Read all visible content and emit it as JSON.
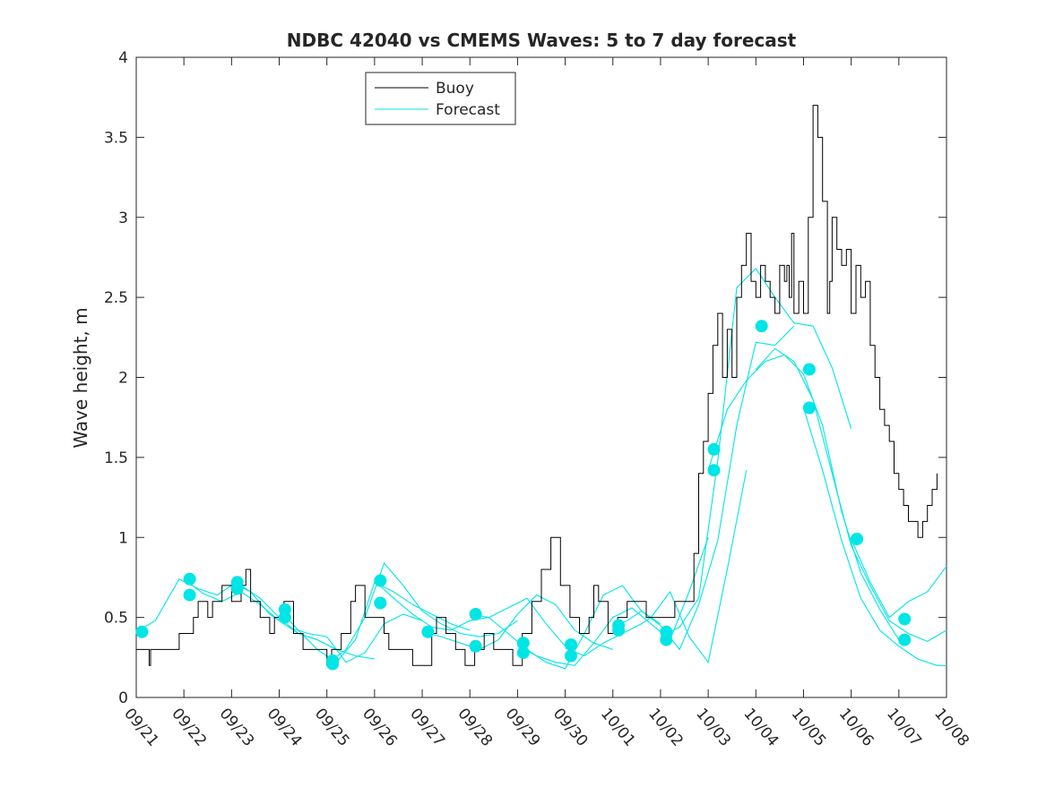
{
  "chart_data": {
    "type": "line",
    "title": "NDBC 42040 vs CMEMS Waves: 5 to 7 day forecast",
    "xlabel": "",
    "ylabel": "Wave height, m",
    "xlim": [
      0,
      17
    ],
    "ylim": [
      0,
      4
    ],
    "x_tick_values": [
      0,
      1,
      2,
      3,
      4,
      5,
      6,
      7,
      8,
      9,
      10,
      11,
      12,
      13,
      14,
      15,
      16,
      17
    ],
    "x_tick_labels": [
      "09/21",
      "09/22",
      "09/23",
      "09/24",
      "09/25",
      "09/26",
      "09/27",
      "09/28",
      "09/29",
      "09/30",
      "10/01",
      "10/02",
      "10/03",
      "10/04",
      "10/05",
      "10/06",
      "10/07",
      "10/08"
    ],
    "y_tick_values": [
      0,
      0.5,
      1,
      1.5,
      2,
      2.5,
      3,
      3.5,
      4
    ],
    "y_tick_labels": [
      "0",
      "0.5",
      "1",
      "1.5",
      "2",
      "2.5",
      "3",
      "3.5",
      "4"
    ],
    "legend": {
      "position": "top-center",
      "entries": [
        "Buoy",
        "Forecast"
      ]
    },
    "colors": {
      "buoy": "#000000",
      "forecast": "#00e5e5",
      "axis": "#262626"
    },
    "buoy": {
      "name": "Buoy",
      "x": [
        0,
        0.25,
        0.27,
        0.3,
        0.6,
        0.9,
        1.0,
        1.2,
        1.3,
        1.5,
        1.6,
        1.8,
        2.0,
        2.2,
        2.3,
        2.4,
        2.6,
        2.8,
        2.9,
        3.1,
        3.3,
        3.5,
        3.8,
        4.0,
        4.1,
        4.3,
        4.5,
        4.6,
        4.8,
        5.0,
        5.2,
        5.3,
        5.5,
        5.8,
        6.0,
        6.2,
        6.3,
        6.5,
        6.7,
        6.9,
        7.1,
        7.3,
        7.5,
        7.7,
        7.9,
        8.1,
        8.3,
        8.5,
        8.7,
        8.9,
        9.1,
        9.3,
        9.5,
        9.6,
        9.7,
        9.9,
        10.1,
        10.3,
        10.5,
        10.7,
        10.9,
        11.1,
        11.3,
        11.5,
        11.6,
        11.7,
        11.8,
        11.9,
        12.0,
        12.1,
        12.2,
        12.3,
        12.4,
        12.5,
        12.6,
        12.7,
        12.8,
        12.9,
        13.0,
        13.1,
        13.2,
        13.3,
        13.4,
        13.5,
        13.6,
        13.65,
        13.7,
        13.75,
        13.8,
        13.9,
        14.0,
        14.1,
        14.2,
        14.3,
        14.4,
        14.5,
        14.55,
        14.6,
        14.7,
        14.8,
        14.9,
        15.0,
        15.1,
        15.2,
        15.3,
        15.4,
        15.5,
        15.6,
        15.7,
        15.8,
        15.9,
        16.0,
        16.1,
        16.2,
        16.3,
        16.4,
        16.5,
        16.6,
        16.7,
        16.8
      ],
      "y": [
        0.3,
        0.3,
        0.2,
        0.3,
        0.3,
        0.4,
        0.4,
        0.5,
        0.6,
        0.5,
        0.6,
        0.7,
        0.6,
        0.7,
        0.8,
        0.6,
        0.5,
        0.4,
        0.5,
        0.6,
        0.4,
        0.3,
        0.3,
        0.2,
        0.3,
        0.4,
        0.6,
        0.7,
        0.5,
        0.5,
        0.4,
        0.3,
        0.3,
        0.2,
        0.2,
        0.4,
        0.5,
        0.4,
        0.3,
        0.2,
        0.3,
        0.4,
        0.3,
        0.3,
        0.2,
        0.4,
        0.6,
        0.8,
        1.0,
        0.7,
        0.5,
        0.4,
        0.5,
        0.7,
        0.6,
        0.4,
        0.5,
        0.6,
        0.6,
        0.5,
        0.5,
        0.5,
        0.6,
        0.6,
        0.6,
        0.9,
        1.4,
        1.6,
        1.9,
        2.2,
        2.4,
        2.0,
        2.3,
        2.0,
        2.5,
        2.7,
        2.9,
        2.6,
        2.5,
        2.7,
        2.6,
        2.5,
        2.4,
        2.7,
        2.6,
        2.7,
        2.5,
        2.9,
        2.4,
        2.6,
        2.4,
        3.0,
        3.7,
        3.5,
        3.1,
        2.4,
        2.6,
        3.0,
        2.8,
        2.7,
        2.8,
        2.4,
        2.7,
        2.5,
        2.6,
        2.2,
        2.0,
        1.8,
        1.7,
        1.6,
        1.4,
        1.3,
        1.2,
        1.1,
        1.1,
        1.0,
        1.1,
        1.2,
        1.3,
        1.4
      ]
    },
    "forecast_series": [
      {
        "name": "Forecast",
        "x": [
          0.0,
          0.4,
          0.9,
          1.3,
          1.7,
          2.1,
          2.6,
          3.0,
          3.4,
          3.8,
          4.2
        ],
        "y": [
          0.41,
          0.48,
          0.74,
          0.68,
          0.64,
          0.72,
          0.62,
          0.5,
          0.4,
          0.36,
          0.3
        ]
      },
      {
        "name": "Forecast",
        "x": [
          1.0,
          1.4,
          1.8,
          2.2,
          2.6,
          3.0,
          3.4,
          3.8,
          4.2,
          4.6,
          5.0
        ],
        "y": [
          0.74,
          0.65,
          0.6,
          0.66,
          0.58,
          0.48,
          0.4,
          0.36,
          0.3,
          0.26,
          0.24
        ]
      },
      {
        "name": "Forecast",
        "x": [
          2.0,
          2.4,
          2.8,
          3.2,
          3.6,
          4.0,
          4.4,
          4.8,
          5.2,
          5.6,
          6.0
        ],
        "y": [
          0.72,
          0.66,
          0.52,
          0.44,
          0.4,
          0.38,
          0.22,
          0.28,
          0.46,
          0.52,
          0.48
        ]
      },
      {
        "name": "Forecast",
        "x": [
          3.0,
          3.4,
          3.8,
          4.2,
          4.6,
          5.0,
          5.4,
          5.8,
          6.2,
          6.6,
          7.0
        ],
        "y": [
          0.55,
          0.42,
          0.3,
          0.22,
          0.36,
          0.72,
          0.66,
          0.58,
          0.52,
          0.46,
          0.42
        ]
      },
      {
        "name": "Forecast",
        "x": [
          4.0,
          4.4,
          4.8,
          5.2,
          5.6,
          6.0,
          6.4,
          6.8,
          7.2,
          7.6,
          8.0
        ],
        "y": [
          0.21,
          0.3,
          0.5,
          0.84,
          0.7,
          0.54,
          0.46,
          0.4,
          0.38,
          0.4,
          0.48
        ]
      },
      {
        "name": "Forecast",
        "x": [
          5.0,
          5.4,
          5.8,
          6.2,
          6.6,
          7.0,
          7.4,
          7.8,
          8.2,
          8.6,
          9.0
        ],
        "y": [
          0.73,
          0.62,
          0.52,
          0.44,
          0.42,
          0.48,
          0.5,
          0.56,
          0.62,
          0.46,
          0.32
        ]
      },
      {
        "name": "Forecast",
        "x": [
          6.0,
          6.4,
          6.8,
          7.2,
          7.6,
          8.0,
          8.4,
          8.8,
          9.2,
          9.6,
          10.0
        ],
        "y": [
          0.41,
          0.38,
          0.34,
          0.3,
          0.36,
          0.52,
          0.64,
          0.58,
          0.42,
          0.34,
          0.3
        ]
      },
      {
        "name": "Forecast",
        "x": [
          7.0,
          7.4,
          7.8,
          8.2,
          8.6,
          9.0,
          9.4,
          9.8,
          10.2,
          10.6,
          11.0
        ],
        "y": [
          0.52,
          0.5,
          0.4,
          0.3,
          0.22,
          0.18,
          0.4,
          0.64,
          0.7,
          0.54,
          0.46
        ]
      },
      {
        "name": "Forecast",
        "x": [
          8.0,
          8.4,
          8.8,
          9.2,
          9.6,
          10.0,
          10.4,
          10.8,
          11.2,
          11.6,
          12.0
        ],
        "y": [
          0.32,
          0.26,
          0.22,
          0.2,
          0.34,
          0.5,
          0.56,
          0.46,
          0.36,
          0.66,
          1.0
        ]
      },
      {
        "name": "Forecast",
        "x": [
          9.0,
          9.4,
          9.8,
          10.2,
          10.6,
          10.8,
          11.2,
          11.6,
          12.0,
          12.4,
          12.8
        ],
        "y": [
          0.31,
          0.26,
          0.34,
          0.4,
          0.46,
          0.5,
          0.66,
          0.38,
          0.22,
          0.8,
          1.42
        ]
      },
      {
        "name": "Forecast",
        "x": [
          10.0,
          10.3,
          10.6,
          11.0,
          11.4,
          11.8,
          12.2,
          12.6,
          13.0,
          13.4,
          13.8
        ],
        "y": [
          0.44,
          0.48,
          0.54,
          0.45,
          0.3,
          0.58,
          0.98,
          1.7,
          2.22,
          2.2,
          2.32
        ]
      },
      {
        "name": "Forecast",
        "x": [
          11.0,
          11.4,
          11.8,
          12.2,
          12.6,
          13.0,
          13.4,
          13.8,
          14.2,
          14.6,
          15.0
        ],
        "y": [
          0.38,
          0.44,
          0.62,
          1.48,
          2.56,
          2.68,
          2.5,
          2.34,
          2.32,
          2.06,
          1.68
        ]
      },
      {
        "name": "Forecast",
        "x": [
          12.0,
          12.4,
          12.8,
          13.2,
          13.6,
          14.0,
          14.4,
          14.8,
          15.2,
          15.6,
          16.0
        ],
        "y": [
          1.42,
          1.8,
          1.98,
          2.1,
          2.14,
          2.02,
          1.7,
          1.16,
          0.78,
          0.55,
          0.36
        ]
      },
      {
        "name": "Forecast",
        "x": [
          13.0,
          13.4,
          13.8,
          14.2,
          14.6,
          15.0,
          15.4,
          15.8,
          16.2,
          16.6,
          17.0
        ],
        "y": [
          2.05,
          2.18,
          2.1,
          1.86,
          1.4,
          0.95,
          0.7,
          0.48,
          0.4,
          0.35,
          0.42
        ]
      },
      {
        "name": "Forecast",
        "x": [
          14.0,
          14.4,
          14.8,
          15.2,
          15.6,
          16.0,
          16.4,
          16.8,
          17.0
        ],
        "y": [
          1.81,
          1.42,
          0.98,
          0.62,
          0.42,
          0.32,
          0.24,
          0.2,
          0.2
        ]
      },
      {
        "name": "Forecast",
        "x": [
          15.0,
          15.4,
          15.8,
          16.2,
          16.6,
          17.0
        ],
        "y": [
          0.99,
          0.72,
          0.5,
          0.6,
          0.66,
          0.82
        ]
      }
    ],
    "forecast_start_markers": {
      "x": [
        0.12,
        1.12,
        1.12,
        2.12,
        2.12,
        3.12,
        3.12,
        4.12,
        4.12,
        5.12,
        5.12,
        6.12,
        7.12,
        7.12,
        8.12,
        8.12,
        9.12,
        9.12,
        10.12,
        10.12,
        11.12,
        11.12,
        12.12,
        12.12,
        13.12,
        14.12,
        14.12,
        15.12,
        16.12,
        16.12
      ],
      "y": [
        0.41,
        0.74,
        0.64,
        0.72,
        0.68,
        0.55,
        0.5,
        0.21,
        0.23,
        0.73,
        0.59,
        0.41,
        0.52,
        0.32,
        0.34,
        0.28,
        0.33,
        0.26,
        0.45,
        0.42,
        0.41,
        0.36,
        1.55,
        1.42,
        2.32,
        2.05,
        1.81,
        0.99,
        0.49,
        0.36
      ]
    }
  }
}
